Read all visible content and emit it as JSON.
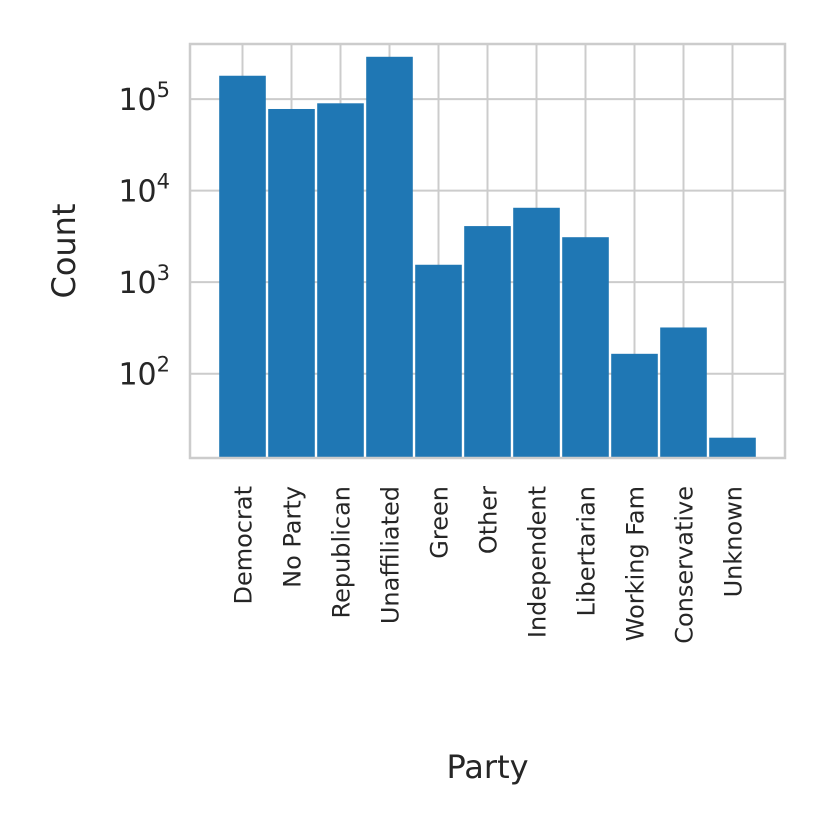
{
  "chart_data": {
    "type": "bar",
    "title": "",
    "xlabel": "Party",
    "ylabel": "Count",
    "yscale": "log",
    "ylim": [
      12,
      400000
    ],
    "grid": true,
    "bar_color": "#1f77b4",
    "categories": [
      "Democrat",
      "No Party",
      "Republican",
      "Unaffiliated",
      "Green",
      "Other",
      "Independent",
      "Libertarian",
      "Working Fam",
      "Conservative",
      "Unknown"
    ],
    "values": [
      180000,
      78000,
      90000,
      290000,
      1550,
      4100,
      6500,
      3100,
      165,
      320,
      20
    ],
    "yticks": [
      {
        "value": 100,
        "base": "10",
        "exp": "2"
      },
      {
        "value": 1000,
        "base": "10",
        "exp": "3"
      },
      {
        "value": 10000,
        "base": "10",
        "exp": "4"
      },
      {
        "value": 100000,
        "base": "10",
        "exp": "5"
      }
    ]
  }
}
